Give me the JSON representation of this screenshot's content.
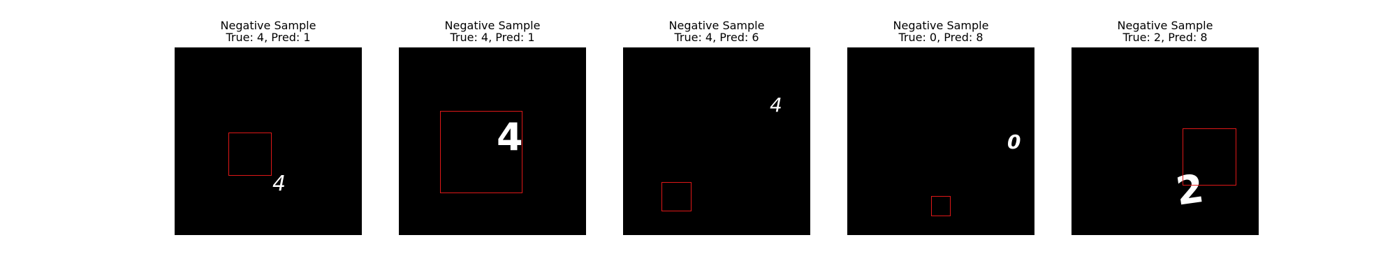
{
  "colors": {
    "background": "#ffffff",
    "image_background": "#000000",
    "digit": "#ffffff",
    "box": "#e01818"
  },
  "panels": [
    {
      "title": "Negative Sample",
      "subtitle": "True: 4, Pred: 1",
      "digit": "4"
    },
    {
      "title": "Negative Sample",
      "subtitle": "True: 4, Pred: 1",
      "digit": "4"
    },
    {
      "title": "Negative Sample",
      "subtitle": "True: 4, Pred: 6",
      "digit": "4"
    },
    {
      "title": "Negative Sample",
      "subtitle": "True: 0, Pred: 8",
      "digit": "0"
    },
    {
      "title": "Negative Sample",
      "subtitle": "True: 2, Pred: 8",
      "digit": "2"
    }
  ]
}
